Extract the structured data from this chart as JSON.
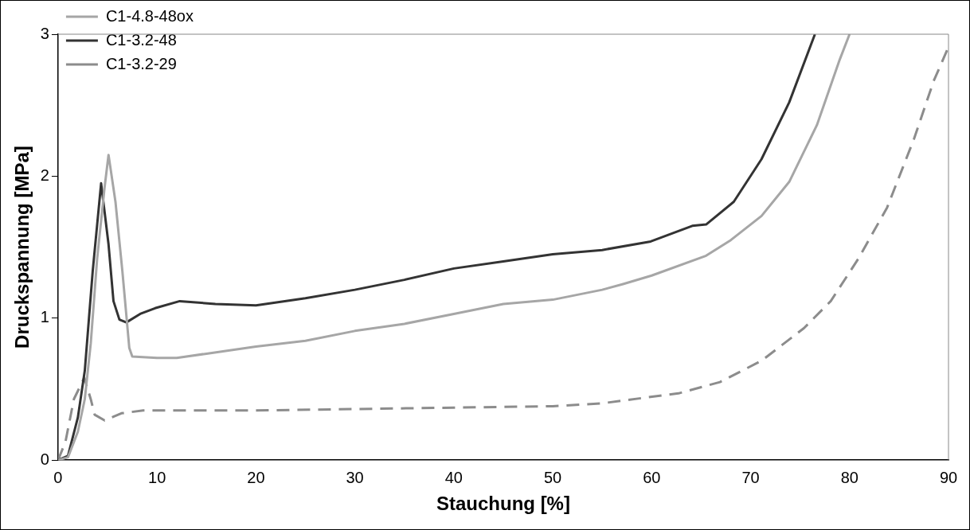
{
  "chart_data": {
    "type": "line",
    "xlabel": "Stauchung [%]",
    "ylabel": "Druckspannung [MPa]",
    "xlim": [
      0,
      90
    ],
    "xticks": [
      0,
      10,
      20,
      30,
      40,
      50,
      60,
      70,
      80,
      90
    ],
    "ylim": [
      0,
      3
    ],
    "yticks": [
      0,
      1,
      2,
      3
    ],
    "grid": false,
    "legend": "top left",
    "marker": "none",
    "series": [
      {
        "name": "C1-4.8-48ox",
        "color": "#a6a6a6",
        "line_style": "solid",
        "x": [
          0,
          1,
          2,
          2.7,
          3.3,
          3.95,
          4.7,
          5.1,
          5.8,
          6.5,
          7.2,
          7.5,
          10,
          12,
          15,
          20,
          25,
          30,
          35,
          40,
          45,
          50,
          55,
          57.1,
          60,
          65.5,
          68,
          71.1,
          73.9,
          76.7,
          79,
          80
        ],
        "values": [
          0,
          0.02,
          0.2,
          0.43,
          0.82,
          1.42,
          1.92,
          2.15,
          1.82,
          1.33,
          0.79,
          0.73,
          0.72,
          0.72,
          0.75,
          0.8,
          0.84,
          0.91,
          0.96,
          1.03,
          1.1,
          1.13,
          1.2,
          1.24,
          1.3,
          1.44,
          1.55,
          1.72,
          1.96,
          2.36,
          2.82,
          3
        ]
      },
      {
        "name": "C1-3.2-48",
        "color": "#333333",
        "line_style": "solid",
        "x": [
          0,
          1,
          2,
          2.7,
          3.5,
          4.35,
          5.1,
          5.6,
          6.2,
          6.9,
          8.3,
          9.8,
          12.3,
          15.9,
          20,
          25,
          30,
          35,
          40,
          45,
          50,
          55,
          59.9,
          64.1,
          65.5,
          68.3,
          71.1,
          73.9,
          76.5
        ],
        "values": [
          0,
          0.03,
          0.3,
          0.63,
          1.33,
          1.95,
          1.52,
          1.12,
          0.99,
          0.97,
          1.03,
          1.07,
          1.12,
          1.1,
          1.09,
          1.14,
          1.2,
          1.27,
          1.35,
          1.4,
          1.45,
          1.48,
          1.54,
          1.65,
          1.66,
          1.82,
          2.12,
          2.52,
          3
        ]
      },
      {
        "name": "C1-3.2-29",
        "color": "#8c8c8c",
        "line_style": "dashed",
        "x": [
          0,
          0.75,
          1.6,
          2.65,
          3.3,
          3.7,
          4.7,
          6.4,
          8.6,
          10,
          20,
          30,
          40,
          50,
          55,
          57.1,
          62.7,
          66.9,
          71.1,
          75.4,
          78.1,
          80.9,
          83.8,
          86.5,
          88.5,
          90
        ],
        "values": [
          0,
          0.13,
          0.43,
          0.58,
          0.43,
          0.32,
          0.28,
          0.33,
          0.35,
          0.35,
          0.35,
          0.36,
          0.37,
          0.38,
          0.4,
          0.42,
          0.47,
          0.55,
          0.7,
          0.93,
          1.12,
          1.42,
          1.78,
          2.26,
          2.67,
          2.91
        ]
      }
    ]
  }
}
